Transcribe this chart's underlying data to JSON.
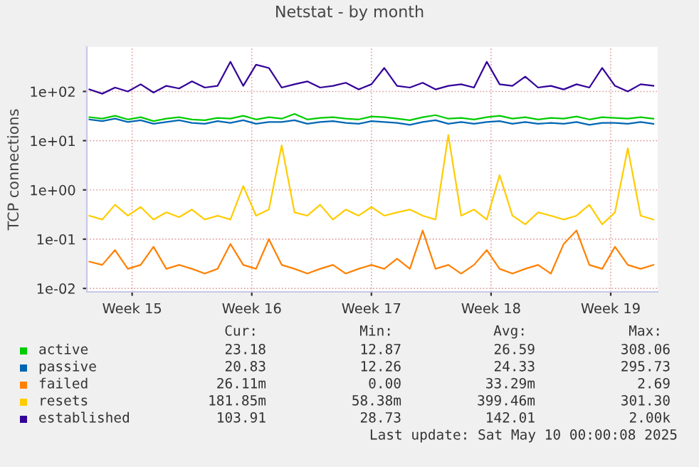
{
  "chart_data": {
    "type": "line",
    "title": "Netstat - by month",
    "ylabel": "TCP connections",
    "log": "y",
    "x": [
      "2025-04-06T18:00",
      "2025-04-07T12:00",
      "2025-04-08T06:00",
      "2025-04-09T00:00",
      "2025-04-09T18:00",
      "2025-04-10T12:00",
      "2025-04-11T06:00",
      "2025-04-12T00:00",
      "2025-04-12T18:00",
      "2025-04-13T12:00",
      "2025-04-14T06:00",
      "2025-04-15T00:00",
      "2025-04-15T18:00",
      "2025-04-16T12:00",
      "2025-04-17T06:00",
      "2025-04-18T00:00",
      "2025-04-18T18:00",
      "2025-04-19T12:00",
      "2025-04-20T06:00",
      "2025-04-21T00:00",
      "2025-04-21T18:00",
      "2025-04-22T12:00",
      "2025-04-23T06:00",
      "2025-04-24T00:00",
      "2025-04-24T18:00",
      "2025-04-25T12:00",
      "2025-04-26T06:00",
      "2025-04-27T00:00",
      "2025-04-27T18:00",
      "2025-04-28T12:00",
      "2025-04-29T06:00",
      "2025-04-30T00:00",
      "2025-04-30T18:00",
      "2025-05-01T12:00",
      "2025-05-02T06:00",
      "2025-05-03T00:00",
      "2025-05-03T18:00",
      "2025-05-04T12:00",
      "2025-05-05T06:00",
      "2025-05-06T00:00",
      "2025-05-06T18:00",
      "2025-05-07T12:00",
      "2025-05-08T06:00",
      "2025-05-09T00:00",
      "2025-05-09T18:00"
    ],
    "xlim": [
      "2025-04-06T14:24",
      "2025-05-10T00:00"
    ],
    "xticks": [
      {
        "value": "2025-04-09T06:00",
        "label": "Week 15"
      },
      {
        "value": "2025-04-16T06:00",
        "label": "Week 16"
      },
      {
        "value": "2025-04-23T06:00",
        "label": "Week 17"
      },
      {
        "value": "2025-04-30T06:00",
        "label": "Week 18"
      },
      {
        "value": "2025-05-07T06:00",
        "label": "Week 19"
      }
    ],
    "ylim": [
      0.0085,
      800
    ],
    "yticks": [
      {
        "value": 0.01,
        "label": "1e-02"
      },
      {
        "value": 0.1,
        "label": "1e-01"
      },
      {
        "value": 1,
        "label": "1e+00"
      },
      {
        "value": 10,
        "label": "1e+01"
      },
      {
        "value": 100,
        "label": "1e+02"
      }
    ],
    "grid": true,
    "legend": "bottom",
    "marker": "none",
    "line_style": "solid",
    "series": [
      {
        "name": "active",
        "color": "#00cc00",
        "values": [
          30,
          28,
          32,
          27,
          30,
          25,
          28,
          30,
          27,
          26,
          29,
          28,
          32,
          27,
          30,
          28,
          35,
          27,
          29,
          30,
          28,
          27,
          31,
          30,
          28,
          26,
          30,
          33,
          28,
          29,
          27,
          30,
          32,
          28,
          30,
          27,
          29,
          28,
          31,
          27,
          30,
          29,
          28,
          30,
          28
        ]
      },
      {
        "name": "passive",
        "color": "#0066b3",
        "values": [
          27,
          25,
          28,
          24,
          26,
          22,
          24,
          26,
          23,
          22,
          25,
          23,
          26,
          22,
          24,
          24,
          26,
          22,
          24,
          25,
          23,
          22,
          25,
          24,
          23,
          21,
          24,
          26,
          22,
          24,
          22,
          24,
          25,
          22,
          24,
          22,
          23,
          22,
          24,
          21,
          23,
          23,
          22,
          24,
          22
        ]
      },
      {
        "name": "failed",
        "color": "#ff8000",
        "values": [
          0.035,
          0.03,
          0.06,
          0.025,
          0.03,
          0.07,
          0.025,
          0.03,
          0.025,
          0.02,
          0.025,
          0.08,
          0.03,
          0.025,
          0.1,
          0.03,
          0.025,
          0.02,
          0.025,
          0.03,
          0.02,
          0.025,
          0.03,
          0.025,
          0.04,
          0.025,
          0.15,
          0.025,
          0.03,
          0.02,
          0.03,
          0.06,
          0.025,
          0.02,
          0.025,
          0.03,
          0.02,
          0.08,
          0.15,
          0.03,
          0.025,
          0.07,
          0.03,
          0.025,
          0.03
        ]
      },
      {
        "name": "resets",
        "color": "#ffcc00",
        "values": [
          0.3,
          0.25,
          0.5,
          0.3,
          0.45,
          0.25,
          0.35,
          0.28,
          0.4,
          0.25,
          0.3,
          0.25,
          1.2,
          0.3,
          0.4,
          8,
          0.35,
          0.3,
          0.5,
          0.25,
          0.4,
          0.3,
          0.45,
          0.3,
          0.35,
          0.4,
          0.3,
          0.25,
          13,
          0.3,
          0.4,
          0.25,
          2,
          0.3,
          0.2,
          0.35,
          0.3,
          0.25,
          0.3,
          0.5,
          0.2,
          0.35,
          7,
          0.3,
          0.25
        ]
      },
      {
        "name": "established",
        "color": "#330099",
        "values": [
          110,
          90,
          120,
          100,
          140,
          95,
          130,
          115,
          160,
          120,
          130,
          400,
          130,
          350,
          300,
          120,
          140,
          160,
          120,
          130,
          150,
          110,
          140,
          300,
          130,
          120,
          150,
          110,
          130,
          140,
          120,
          400,
          140,
          130,
          200,
          120,
          130,
          110,
          140,
          120,
          300,
          130,
          100,
          140,
          130
        ]
      }
    ],
    "annotations": [
      "Cur:",
      "Min:",
      "Avg:",
      "Max:",
      "23.18",
      "12.87",
      "26.59",
      "308.06",
      "20.83",
      "12.26",
      "24.33",
      "295.73",
      "26.11m",
      "0.00",
      "33.29m",
      "2.69",
      "181.85m",
      "58.38m",
      "399.46m",
      "301.30",
      "103.91",
      "28.73",
      "142.01",
      "2.00k",
      "Last update: Sat May 10 00:00:08 2025"
    ]
  }
}
